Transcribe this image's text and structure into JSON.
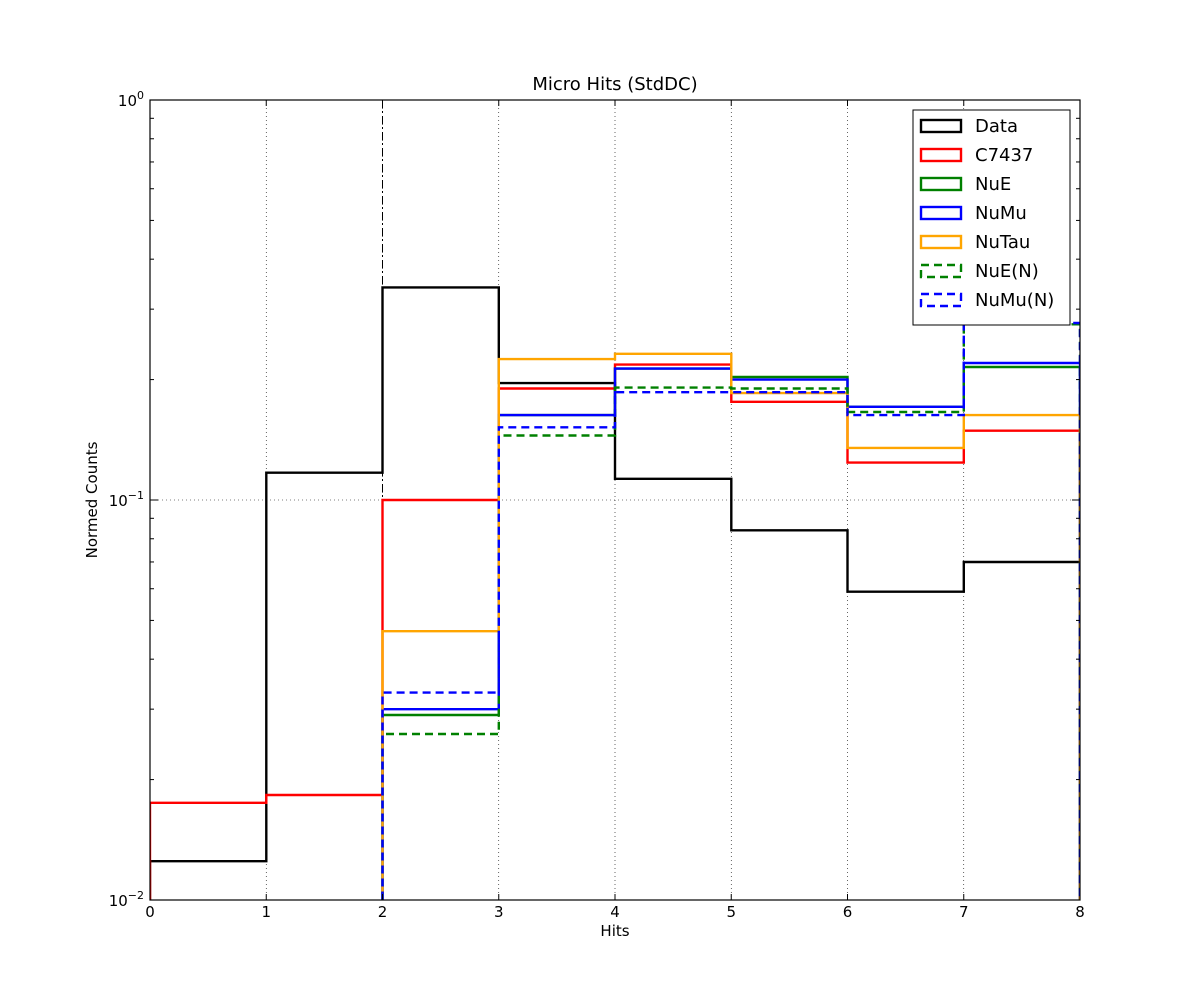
{
  "chart_data": {
    "type": "line",
    "title": "Micro Hits (StdDC)",
    "xlabel": "Hits",
    "ylabel": "Normed Counts",
    "xlim": [
      0,
      8
    ],
    "ylim": [
      0.01,
      1
    ],
    "yscale": "log",
    "grid": true,
    "legend_position": "top-right",
    "xticks": [
      "0",
      "1",
      "2",
      "3",
      "4",
      "5",
      "6",
      "7",
      "8"
    ],
    "yticks": [
      {
        "value": 1,
        "base": "10",
        "exp": "0"
      },
      {
        "value": 0.1,
        "base": "10",
        "exp": "−1"
      },
      {
        "value": 0.01,
        "base": "10",
        "exp": "−2"
      }
    ],
    "cut_line_x": 2,
    "bin_edges": [
      0,
      1,
      2,
      3,
      4,
      5,
      6,
      7,
      8
    ],
    "series": [
      {
        "name": "Data",
        "color": "#000000",
        "dashed": false,
        "values": [
          0.0125,
          0.117,
          0.34,
          0.196,
          0.113,
          0.084,
          0.059,
          0.07
        ]
      },
      {
        "name": "C7437",
        "color": "#ff0000",
        "dashed": false,
        "values": [
          0.0175,
          0.0183,
          0.1,
          0.19,
          0.218,
          0.176,
          0.124,
          0.149
        ]
      },
      {
        "name": "NuE",
        "color": "#008000",
        "dashed": false,
        "values": [
          0,
          0,
          0.029,
          0.163,
          0.213,
          0.203,
          0.171,
          0.215
        ]
      },
      {
        "name": "NuMu",
        "color": "#0000ff",
        "dashed": false,
        "values": [
          0,
          0,
          0.03,
          0.163,
          0.213,
          0.2,
          0.171,
          0.22
        ]
      },
      {
        "name": "NuTau",
        "color": "#ffa500",
        "dashed": false,
        "values": [
          0,
          0,
          0.047,
          0.225,
          0.232,
          0.185,
          0.135,
          0.163
        ]
      },
      {
        "name": "NuE(N)",
        "color": "#008000",
        "dashed": true,
        "values": [
          0,
          0,
          0.026,
          0.145,
          0.191,
          0.19,
          0.166,
          0.275
        ]
      },
      {
        "name": "NuMu(N)",
        "color": "#0000ff",
        "dashed": true,
        "values": [
          0,
          0,
          0.033,
          0.152,
          0.186,
          0.186,
          0.163,
          0.277
        ]
      }
    ]
  }
}
